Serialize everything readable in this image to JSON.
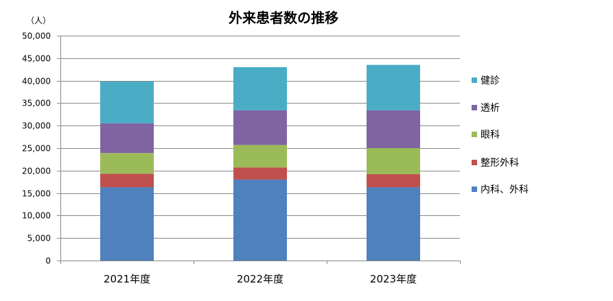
{
  "chart_data": {
    "type": "bar",
    "stacked": true,
    "title": "外来患者数の推移",
    "unit_label": "（人）",
    "categories": [
      "2021年度",
      "2022年度",
      "2023年度"
    ],
    "ylim": [
      0,
      50000
    ],
    "yticks": [
      "0",
      "5,000",
      "10,000",
      "15,000",
      "20,000",
      "25,000",
      "30,000",
      "35,000",
      "40,000",
      "45,000",
      "50,000"
    ],
    "ytick_values": [
      0,
      5000,
      10000,
      15000,
      20000,
      25000,
      30000,
      35000,
      40000,
      45000,
      50000
    ],
    "grid": true,
    "legend_position": "right",
    "series": [
      {
        "name": "内科、外科",
        "color": "#4F81BD",
        "values": [
          16300,
          18000,
          16300
        ]
      },
      {
        "name": "整形外科",
        "color": "#C0504D",
        "values": [
          3000,
          2700,
          2900
        ]
      },
      {
        "name": "眼科",
        "color": "#9BBB59",
        "values": [
          4600,
          5000,
          5800
        ]
      },
      {
        "name": "透析",
        "color": "#8064A2",
        "values": [
          6600,
          7700,
          8400
        ]
      },
      {
        "name": "健診",
        "color": "#4BACC6",
        "values": [
          9300,
          9600,
          10100
        ]
      }
    ]
  }
}
